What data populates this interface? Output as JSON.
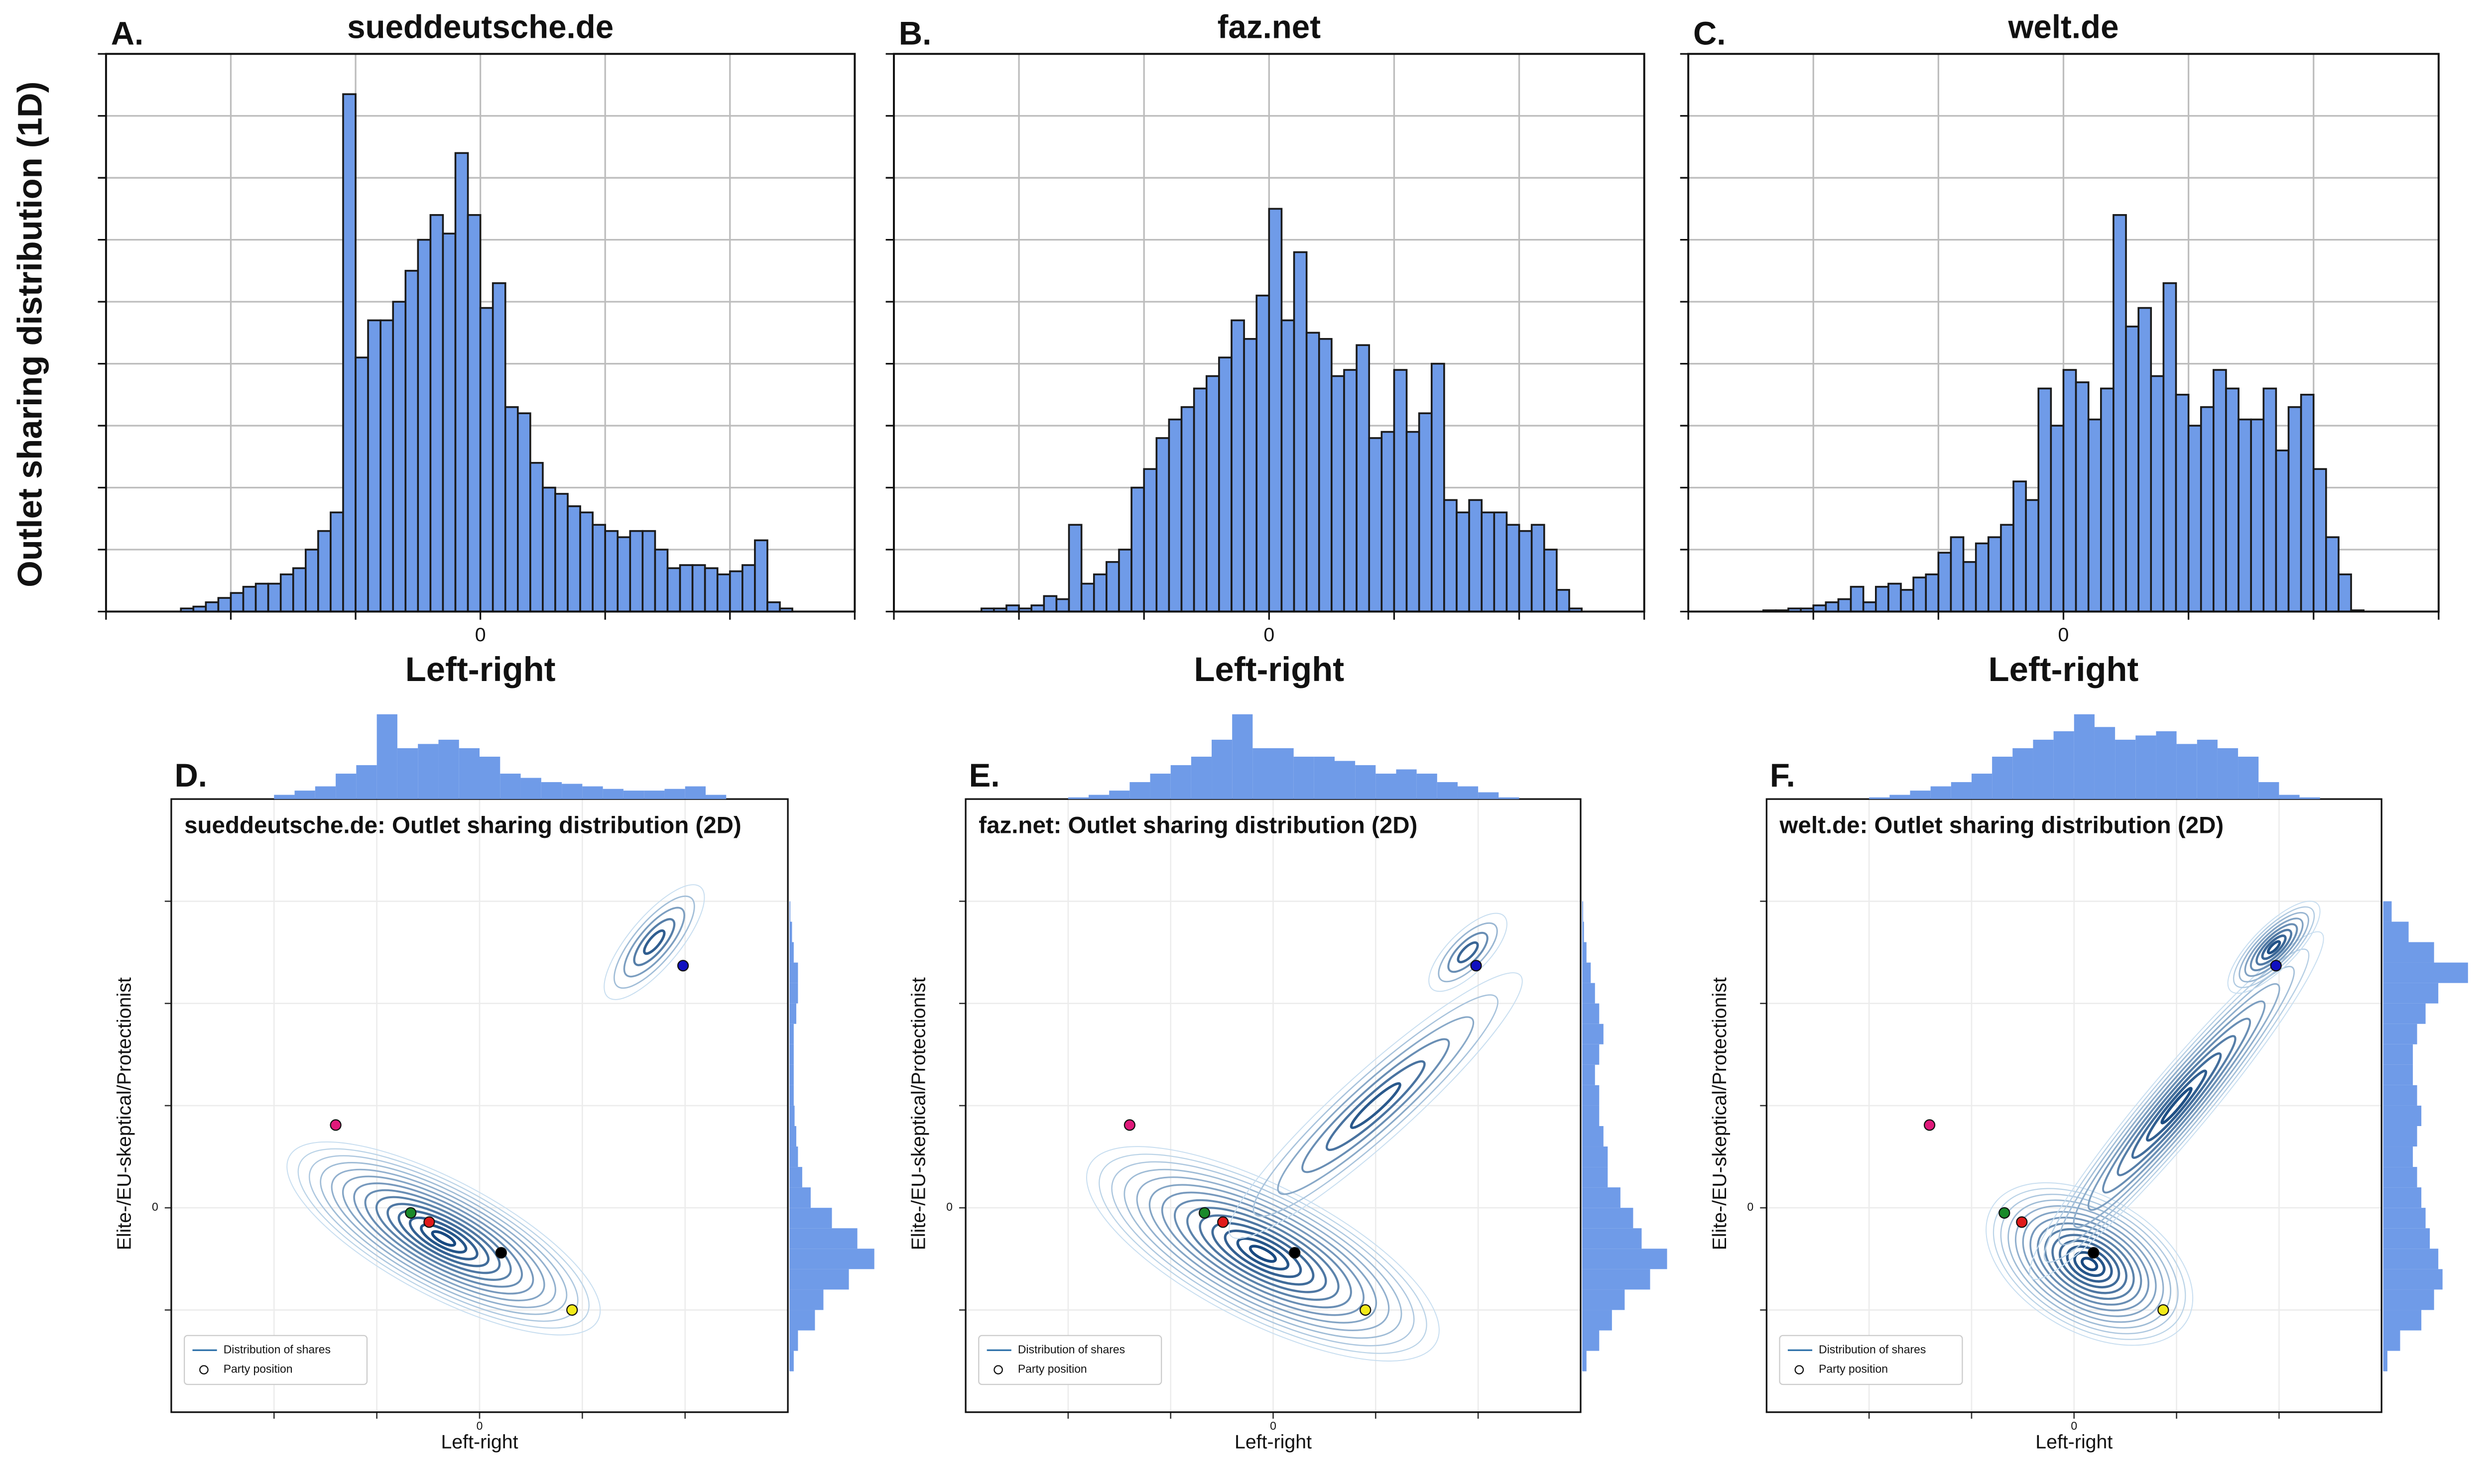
{
  "chart_data": [
    {
      "type": "histogram",
      "panel": "A.",
      "title": "sueddeutsche.de",
      "xlabel": "Left-right",
      "ylabel": "Outlet sharing distribution (1D)",
      "bins": [
        -2.4,
        -2.3,
        -2.2,
        -2.1,
        -2,
        -1.9,
        -1.8,
        -1.7,
        -1.6,
        -1.5,
        -1.4,
        -1.3,
        -1.2,
        -1.1,
        -1,
        -0.9,
        -0.8,
        -0.7,
        -0.6,
        -0.5,
        -0.4,
        -0.3,
        -0.2,
        -0.1,
        0,
        0.1,
        0.2,
        0.3,
        0.4,
        0.5,
        0.6,
        0.7,
        0.8,
        0.9,
        1,
        1.1,
        1.2,
        1.3,
        1.4,
        1.5,
        1.6,
        1.7,
        1.8,
        1.9,
        2,
        2.1,
        2.2,
        2.3,
        2.4,
        2.5
      ],
      "values": [
        0.05,
        0.08,
        0.15,
        0.22,
        0.3,
        0.4,
        0.45,
        0.45,
        0.6,
        0.7,
        1.0,
        1.3,
        1.6,
        8.35,
        4.1,
        4.7,
        4.7,
        5.0,
        5.5,
        6.0,
        6.4,
        6.1,
        7.4,
        6.4,
        4.9,
        5.3,
        3.3,
        3.2,
        2.4,
        2.0,
        1.9,
        1.7,
        1.6,
        1.4,
        1.3,
        1.2,
        1.3,
        1.3,
        1.0,
        0.7,
        0.75,
        0.75,
        0.7,
        0.6,
        0.65,
        0.75,
        1.15,
        0.15,
        0.05
      ],
      "color": "#6f9be8",
      "xlim": [
        -3,
        3
      ],
      "ylim": [
        0,
        9
      ],
      "xticks": [
        -3,
        -2,
        -1,
        0,
        1,
        2,
        3
      ],
      "xtick_labels": [
        0
      ],
      "yticks": [
        0,
        1,
        2,
        3,
        4,
        5,
        6,
        7,
        8,
        9
      ],
      "grid": true
    },
    {
      "type": "histogram",
      "panel": "B.",
      "title": "faz.net",
      "xlabel": "Left-right",
      "bins": [
        -2.4,
        -2.3,
        -2.2,
        -2.1,
        -2,
        -1.9,
        -1.8,
        -1.7,
        -1.6,
        -1.5,
        -1.4,
        -1.3,
        -1.2,
        -1.1,
        -1,
        -0.9,
        -0.8,
        -0.7,
        -0.6,
        -0.5,
        -0.4,
        -0.3,
        -0.2,
        -0.1,
        0,
        0.1,
        0.2,
        0.3,
        0.4,
        0.5,
        0.6,
        0.7,
        0.8,
        0.9,
        1,
        1.1,
        1.2,
        1.3,
        1.4,
        1.5,
        1.6,
        1.7,
        1.8,
        1.9,
        2,
        2.1,
        2.2,
        2.3,
        2.4,
        2.5
      ],
      "values": [
        0,
        0.05,
        0.05,
        0.1,
        0.05,
        0.1,
        0.25,
        0.2,
        1.4,
        0.45,
        0.6,
        0.8,
        1.0,
        2.0,
        2.3,
        2.8,
        3.1,
        3.3,
        3.6,
        3.8,
        4.1,
        4.7,
        4.4,
        5.1,
        6.5,
        4.7,
        5.8,
        4.5,
        4.4,
        3.8,
        3.9,
        4.3,
        2.8,
        2.9,
        3.9,
        2.9,
        3.2,
        4.0,
        1.8,
        1.6,
        1.8,
        1.6,
        1.6,
        1.4,
        1.3,
        1.4,
        1.0,
        0.35,
        0.05
      ],
      "color": "#6f9be8",
      "xlim": [
        -3,
        3
      ],
      "ylim": [
        0,
        9
      ],
      "xticks": [
        -3,
        -2,
        -1,
        0,
        1,
        2,
        3
      ],
      "xtick_labels": [
        0
      ],
      "yticks": [
        0,
        1,
        2,
        3,
        4,
        5,
        6,
        7,
        8,
        9
      ],
      "grid": true
    },
    {
      "type": "histogram",
      "panel": "C.",
      "title": "welt.de",
      "xlabel": "Left-right",
      "bins": [
        -2.4,
        -2.3,
        -2.2,
        -2.1,
        -2,
        -1.9,
        -1.8,
        -1.7,
        -1.6,
        -1.5,
        -1.4,
        -1.3,
        -1.2,
        -1.1,
        -1,
        -0.9,
        -0.8,
        -0.7,
        -0.6,
        -0.5,
        -0.4,
        -0.3,
        -0.2,
        -0.1,
        0,
        0.1,
        0.2,
        0.3,
        0.4,
        0.5,
        0.6,
        0.7,
        0.8,
        0.9,
        1,
        1.1,
        1.2,
        1.3,
        1.4,
        1.5,
        1.6,
        1.7,
        1.8,
        1.9,
        2,
        2.1,
        2.2,
        2.3,
        2.4,
        2.5
      ],
      "values": [
        0.02,
        0.02,
        0.05,
        0.05,
        0.1,
        0.15,
        0.2,
        0.4,
        0.15,
        0.4,
        0.45,
        0.35,
        0.55,
        0.6,
        0.95,
        1.2,
        0.8,
        1.1,
        1.2,
        1.4,
        2.1,
        1.8,
        3.6,
        3.0,
        3.9,
        3.7,
        3.1,
        3.6,
        6.4,
        4.6,
        4.9,
        3.8,
        5.3,
        3.5,
        3.0,
        3.3,
        3.9,
        3.6,
        3.1,
        3.1,
        3.6,
        2.6,
        3.3,
        3.5,
        2.3,
        1.2,
        0.6,
        0.02,
        0
      ],
      "color": "#6f9be8",
      "xlim": [
        -3,
        3
      ],
      "ylim": [
        0,
        9
      ],
      "xticks": [
        -3,
        -2,
        -1,
        0,
        1,
        2,
        3
      ],
      "xtick_labels": [
        0
      ],
      "yticks": [
        0,
        1,
        2,
        3,
        4,
        5,
        6,
        7,
        8,
        9
      ],
      "grid": true
    },
    {
      "type": "kde2d",
      "panel": "D.",
      "title": "sueddeutsche.de: Outlet sharing distribution (2D)",
      "xlabel": "Left-right",
      "ylabel": "Elite-/EU-skeptical/Protectionist",
      "xlim": [
        -3,
        3
      ],
      "ylim": [
        -2,
        4
      ],
      "xticks": [
        -2,
        -1,
        0,
        1,
        2
      ],
      "yticks": [
        -1,
        0,
        1,
        2,
        3
      ],
      "xtick_labels": [
        0
      ],
      "ytick_labels": [
        0
      ],
      "grid": true,
      "legend": [
        "Distribution of shares",
        "Party position"
      ],
      "contour_color": "#2b6fa8",
      "marginal_color": "#6f9be8",
      "parties": [
        {
          "x": -1.4,
          "y": 0.81,
          "color": "#e0197a"
        },
        {
          "x": 1.98,
          "y": 2.37,
          "color": "#1010c0"
        },
        {
          "x": -0.67,
          "y": -0.05,
          "color": "#1a8a2a"
        },
        {
          "x": -0.49,
          "y": -0.14,
          "color": "#e01a1a"
        },
        {
          "x": 0.21,
          "y": -0.44,
          "color": "#000000"
        },
        {
          "x": 0.9,
          "y": -1.0,
          "color": "#f2ea1a"
        }
      ],
      "top_marginal": {
        "bins": [
          -2,
          -1.8,
          -1.6,
          -1.4,
          -1.2,
          -1,
          -0.8,
          -0.6,
          -0.4,
          -0.2,
          0,
          0.2,
          0.4,
          0.6,
          0.8,
          1,
          1.2,
          1.4,
          1.6,
          1.8,
          2,
          2.2,
          2.4
        ],
        "values": [
          0.05,
          0.1,
          0.15,
          0.3,
          0.4,
          1.0,
          0.6,
          0.65,
          0.7,
          0.6,
          0.5,
          0.3,
          0.25,
          0.2,
          0.18,
          0.15,
          0.12,
          0.1,
          0.1,
          0.12,
          0.15,
          0.05
        ],
        "lim": [
          0,
          1
        ]
      },
      "right_marginal": {
        "bins": [
          -1.6,
          -1.4,
          -1.2,
          -1,
          -0.8,
          -0.6,
          -0.4,
          -0.2,
          0,
          0.2,
          0.4,
          0.6,
          0.8,
          1,
          1.2,
          1.4,
          1.6,
          1.8,
          2,
          2.2,
          2.4,
          2.6,
          2.8,
          3
        ],
        "values": [
          0.05,
          0.1,
          0.3,
          0.4,
          0.7,
          1.0,
          0.8,
          0.5,
          0.25,
          0.15,
          0.1,
          0.08,
          0.06,
          0.05,
          0.05,
          0.05,
          0.05,
          0.08,
          0.1,
          0.1,
          0.05,
          0.03,
          0.01
        ],
        "lim": [
          0,
          1
        ]
      }
    },
    {
      "type": "kde2d",
      "panel": "E.",
      "title": "faz.net: Outlet sharing distribution (2D)",
      "xlabel": "Left-right",
      "ylabel": "Elite-/EU-skeptical/Protectionist",
      "xlim": [
        -3,
        3
      ],
      "ylim": [
        -2,
        4
      ],
      "xticks": [
        -2,
        -1,
        0,
        1,
        2
      ],
      "yticks": [
        -1,
        0,
        1,
        2,
        3
      ],
      "xtick_labels": [
        0
      ],
      "ytick_labels": [
        0
      ],
      "grid": true,
      "legend": [
        "Distribution of shares",
        "Party position"
      ],
      "contour_color": "#2b6fa8",
      "marginal_color": "#6f9be8",
      "parties": [
        {
          "x": -1.4,
          "y": 0.81,
          "color": "#e0197a"
        },
        {
          "x": 1.98,
          "y": 2.37,
          "color": "#1010c0"
        },
        {
          "x": -0.67,
          "y": -0.05,
          "color": "#1a8a2a"
        },
        {
          "x": -0.49,
          "y": -0.14,
          "color": "#e01a1a"
        },
        {
          "x": 0.21,
          "y": -0.44,
          "color": "#000000"
        },
        {
          "x": 0.9,
          "y": -1.0,
          "color": "#f2ea1a"
        }
      ],
      "top_marginal": {
        "bins": [
          -2,
          -1.8,
          -1.6,
          -1.4,
          -1.2,
          -1,
          -0.8,
          -0.6,
          -0.4,
          -0.2,
          0,
          0.2,
          0.4,
          0.6,
          0.8,
          1,
          1.2,
          1.4,
          1.6,
          1.8,
          2,
          2.2,
          2.4
        ],
        "values": [
          0.02,
          0.05,
          0.1,
          0.2,
          0.3,
          0.4,
          0.5,
          0.7,
          1.0,
          0.6,
          0.6,
          0.5,
          0.5,
          0.45,
          0.4,
          0.3,
          0.35,
          0.3,
          0.2,
          0.15,
          0.08,
          0.02
        ],
        "lim": [
          0,
          1
        ]
      },
      "right_marginal": {
        "bins": [
          -1.6,
          -1.4,
          -1.2,
          -1,
          -0.8,
          -0.6,
          -0.4,
          -0.2,
          0,
          0.2,
          0.4,
          0.6,
          0.8,
          1,
          1.2,
          1.4,
          1.6,
          1.8,
          2,
          2.2,
          2.4,
          2.6,
          2.8,
          3
        ],
        "values": [
          0.05,
          0.2,
          0.35,
          0.5,
          0.8,
          1.0,
          0.7,
          0.6,
          0.45,
          0.3,
          0.3,
          0.25,
          0.2,
          0.2,
          0.15,
          0.2,
          0.25,
          0.2,
          0.15,
          0.1,
          0.05,
          0.02,
          0.01
        ],
        "lim": [
          0,
          1
        ]
      }
    },
    {
      "type": "kde2d",
      "panel": "F.",
      "title": "welt.de: Outlet sharing distribution (2D)",
      "xlabel": "Left-right",
      "ylabel": "Elite-/EU-skeptical/Protectionist",
      "xlim": [
        -3,
        3
      ],
      "ylim": [
        -2,
        4
      ],
      "xticks": [
        -2,
        -1,
        0,
        1,
        2
      ],
      "yticks": [
        -1,
        0,
        1,
        2,
        3
      ],
      "xtick_labels": [
        0
      ],
      "ytick_labels": [
        0
      ],
      "grid": true,
      "legend": [
        "Distribution of shares",
        "Party position"
      ],
      "contour_color": "#2b6fa8",
      "marginal_color": "#6f9be8",
      "parties": [
        {
          "x": -1.41,
          "y": 0.81,
          "color": "#e0197a"
        },
        {
          "x": 1.97,
          "y": 2.37,
          "color": "#1010c0"
        },
        {
          "x": -0.68,
          "y": -0.05,
          "color": "#1a8a2a"
        },
        {
          "x": -0.51,
          "y": -0.14,
          "color": "#e01a1a"
        },
        {
          "x": 0.19,
          "y": -0.44,
          "color": "#000000"
        },
        {
          "x": 0.87,
          "y": -1.0,
          "color": "#f2ea1a"
        }
      ],
      "top_marginal": {
        "bins": [
          -2,
          -1.8,
          -1.6,
          -1.4,
          -1.2,
          -1,
          -0.8,
          -0.6,
          -0.4,
          -0.2,
          0,
          0.2,
          0.4,
          0.6,
          0.8,
          1,
          1.2,
          1.4,
          1.6,
          1.8,
          2,
          2.2,
          2.4
        ],
        "values": [
          0.02,
          0.05,
          0.1,
          0.15,
          0.2,
          0.3,
          0.5,
          0.6,
          0.7,
          0.8,
          1.0,
          0.85,
          0.7,
          0.75,
          0.8,
          0.65,
          0.7,
          0.6,
          0.5,
          0.2,
          0.05,
          0.02
        ],
        "lim": [
          0,
          1
        ]
      },
      "right_marginal": {
        "bins": [
          -1.6,
          -1.4,
          -1.2,
          -1,
          -0.8,
          -0.6,
          -0.4,
          -0.2,
          0,
          0.2,
          0.4,
          0.6,
          0.8,
          1,
          1.2,
          1.4,
          1.6,
          1.8,
          2,
          2.2,
          2.4,
          2.6,
          2.8,
          3
        ],
        "values": [
          0.05,
          0.2,
          0.45,
          0.6,
          0.7,
          0.65,
          0.55,
          0.5,
          0.45,
          0.4,
          0.35,
          0.4,
          0.45,
          0.4,
          0.35,
          0.35,
          0.4,
          0.5,
          0.65,
          1.0,
          0.6,
          0.3,
          0.1
        ],
        "lim": [
          0,
          1
        ]
      }
    }
  ]
}
